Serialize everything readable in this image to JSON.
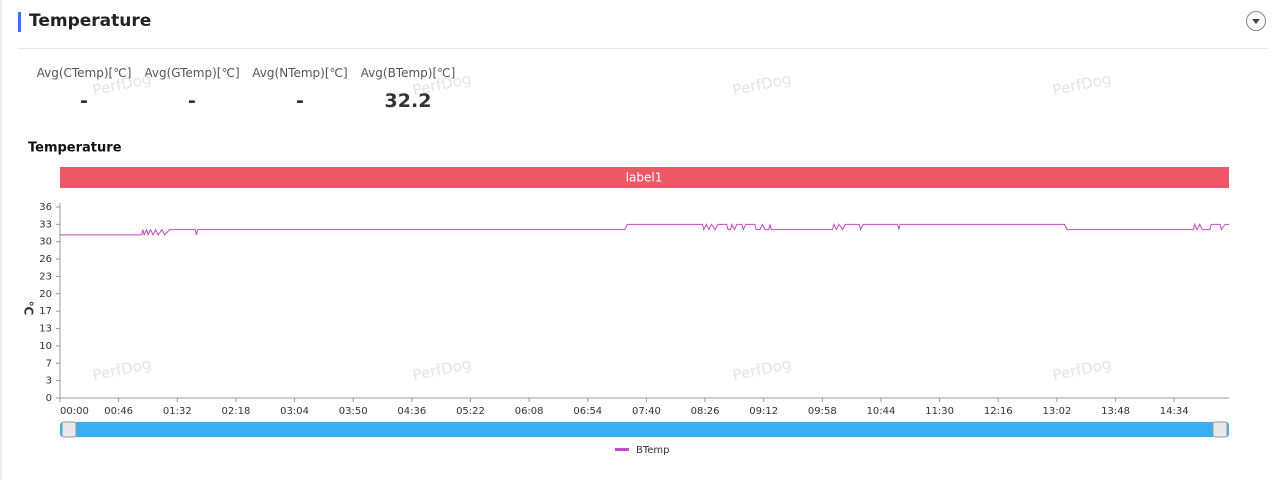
{
  "header": {
    "title": "Temperature"
  },
  "stats": [
    {
      "label": "Avg(CTemp)[℃]",
      "value": "-"
    },
    {
      "label": "Avg(GTemp)[℃]",
      "value": "-"
    },
    {
      "label": "Avg(NTemp)[℃]",
      "value": "-"
    },
    {
      "label": "Avg(BTemp)[℃]",
      "value": "32.2"
    }
  ],
  "watermark": "PerfDog",
  "chart_data": {
    "type": "line",
    "title": "Temperature",
    "band_label": "label1",
    "ylabel": "℃",
    "xlim": [
      0,
      917
    ],
    "ylim": [
      0,
      36.3
    ],
    "xticks": [
      {
        "value": 0,
        "label": "00:00"
      },
      {
        "value": 46,
        "label": "00:46"
      },
      {
        "value": 92,
        "label": "01:32"
      },
      {
        "value": 138,
        "label": "02:18"
      },
      {
        "value": 184,
        "label": "03:04"
      },
      {
        "value": 230,
        "label": "03:50"
      },
      {
        "value": 276,
        "label": "04:36"
      },
      {
        "value": 322,
        "label": "05:22"
      },
      {
        "value": 368,
        "label": "06:08"
      },
      {
        "value": 414,
        "label": "06:54"
      },
      {
        "value": 460,
        "label": "07:40"
      },
      {
        "value": 506,
        "label": "08:26"
      },
      {
        "value": 552,
        "label": "09:12"
      },
      {
        "value": 598,
        "label": "09:58"
      },
      {
        "value": 644,
        "label": "10:44"
      },
      {
        "value": 690,
        "label": "11:30"
      },
      {
        "value": 736,
        "label": "12:16"
      },
      {
        "value": 782,
        "label": "13:02"
      },
      {
        "value": 828,
        "label": "13:48"
      },
      {
        "value": 874,
        "label": "14:34"
      }
    ],
    "yticks": [
      0,
      {
        "value": 3.3,
        "label": "3"
      },
      {
        "value": 6.6,
        "label": "7"
      },
      {
        "value": 9.9,
        "label": "10"
      },
      {
        "value": 13.2,
        "label": "13"
      },
      {
        "value": 16.5,
        "label": "17"
      },
      {
        "value": 19.8,
        "label": "20"
      },
      {
        "value": 23.1,
        "label": "23"
      },
      {
        "value": 26.4,
        "label": "26"
      },
      {
        "value": 29.7,
        "label": "30"
      },
      33,
      {
        "value": 36.3,
        "label": "36"
      }
    ],
    "x": [
      0,
      64,
      65,
      66,
      68,
      69,
      71,
      73,
      75,
      77,
      80,
      82,
      86,
      106,
      107,
      108,
      443,
      445,
      504,
      505,
      507,
      509,
      511,
      514,
      516,
      523,
      524,
      526,
      527,
      529,
      531,
      535,
      536,
      538,
      545,
      546,
      549,
      551,
      553,
      556,
      557,
      558,
      606,
      607,
      609,
      611,
      614,
      616,
      627,
      628,
      630,
      657,
      658,
      659,
      788,
      790,
      889,
      890,
      892,
      894,
      896,
      902,
      903,
      910,
      911,
      914,
      917
    ],
    "series": [
      {
        "name": "BTemp",
        "color": "#c24bc2",
        "values": [
          31,
          31,
          32,
          31,
          32,
          31,
          32,
          31,
          32,
          31,
          32,
          31,
          32,
          32,
          31,
          32,
          32,
          33,
          33,
          32,
          33,
          32,
          33,
          32,
          33,
          33,
          32,
          32,
          33,
          32,
          33,
          33,
          32,
          33,
          33,
          32,
          32,
          33,
          32,
          32,
          33,
          32,
          32,
          33,
          32,
          33,
          32,
          33,
          33,
          32,
          33,
          33,
          32,
          33,
          33,
          32,
          32,
          33,
          32,
          33,
          32,
          32,
          33,
          33,
          32,
          33,
          33
        ]
      }
    ]
  }
}
